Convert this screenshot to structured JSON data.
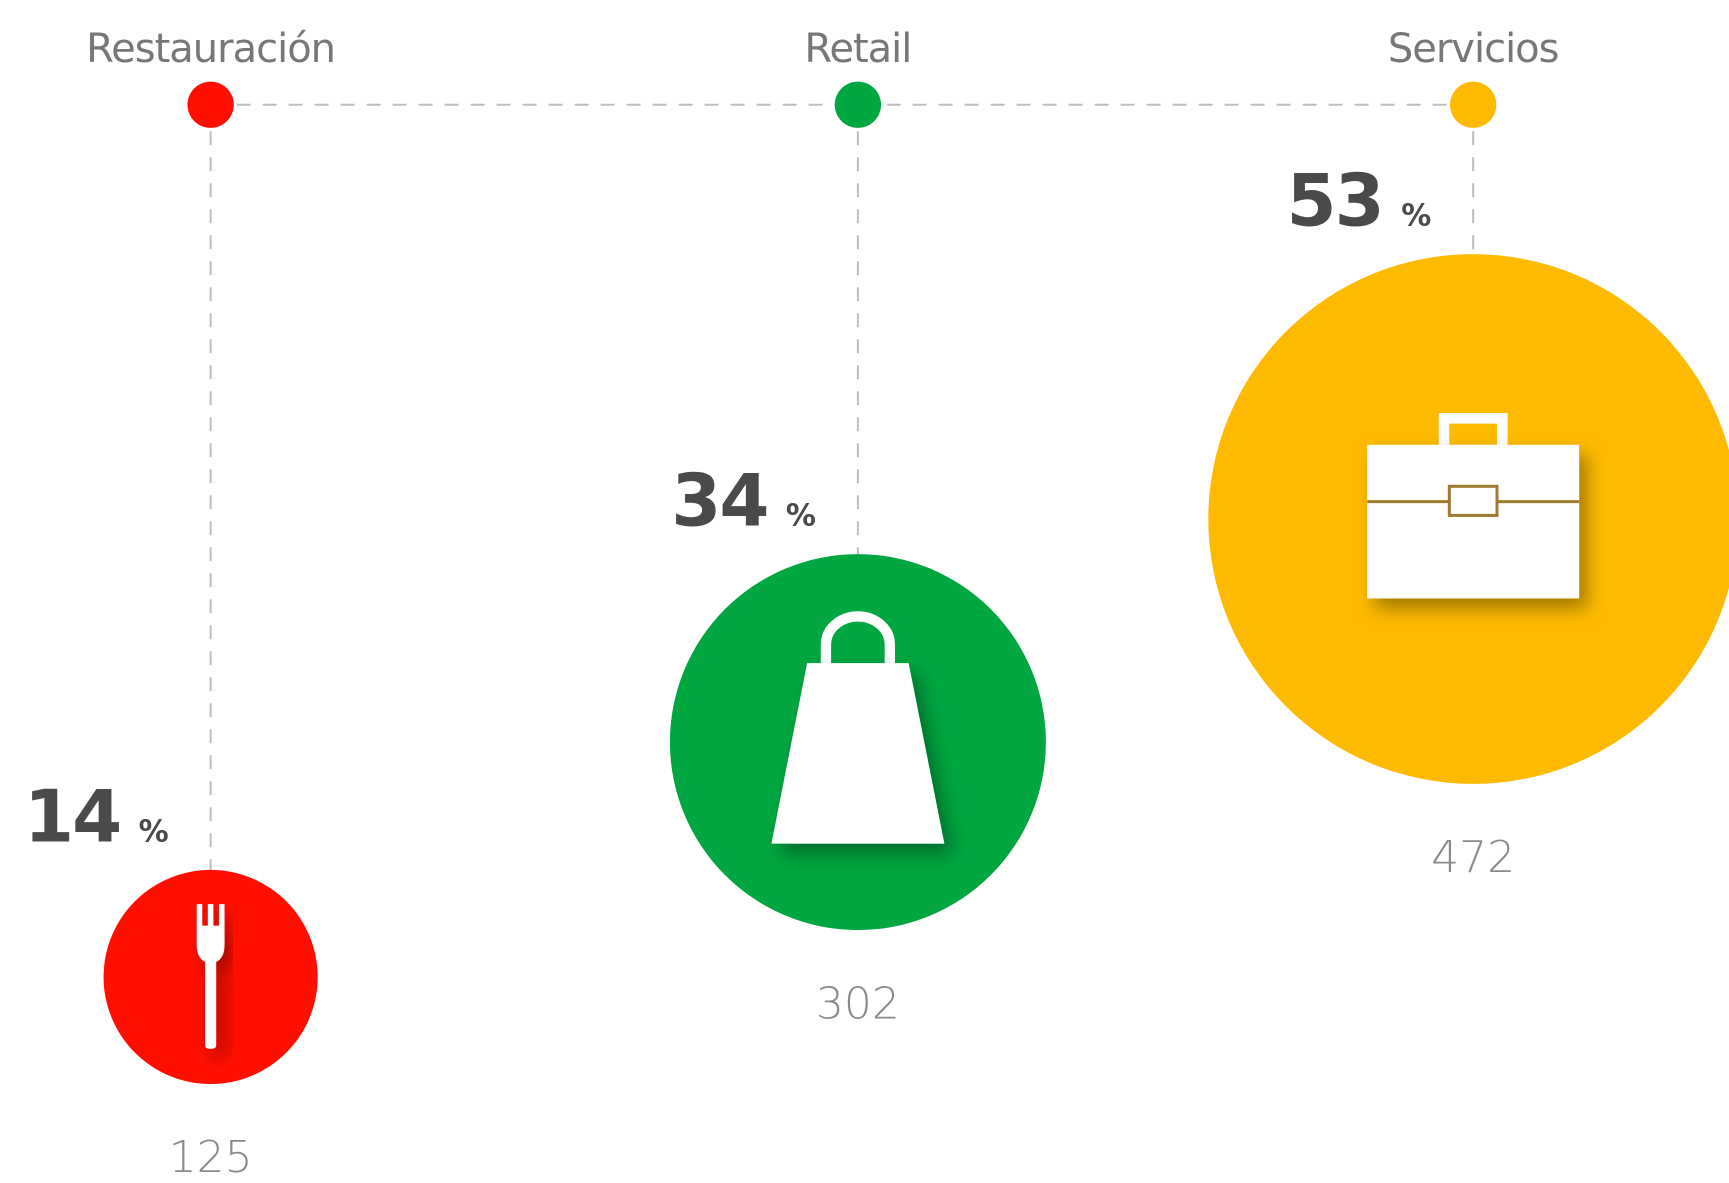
{
  "chart_data": {
    "type": "bubble",
    "categories": [
      "Restauración",
      "Retail",
      "Servicios"
    ],
    "values": [
      14,
      34,
      53
    ],
    "unit": "%",
    "counts": [
      125,
      302,
      472
    ],
    "colors": [
      "#ff0f00",
      "#00a640",
      "#fdba00"
    ]
  }
}
